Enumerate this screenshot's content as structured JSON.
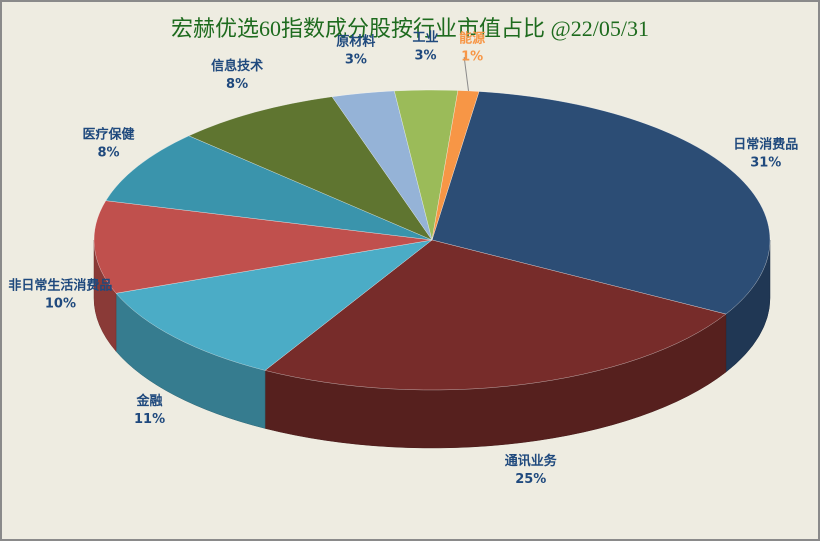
{
  "chart_data": {
    "type": "pie",
    "title": "宏赫优选60指数成分股按行业市值占比 @22/05/31",
    "categories": [
      "日常消费品",
      "通讯业务",
      "金融",
      "非日常生活消费品",
      "医疗保健",
      "信息技术",
      "原材料",
      "工业",
      "能源"
    ],
    "values": [
      31,
      25,
      11,
      10,
      8,
      8,
      3,
      3,
      1
    ],
    "value_labels": [
      "31%",
      "25%",
      "11%",
      "10%",
      "8%",
      "8%",
      "3%",
      "3%",
      "1%"
    ],
    "colors": [
      "#2c4d75",
      "#772c2a",
      "#4bacc6",
      "#c0504d",
      "#3a94ac",
      "#5f7530",
      "#95b3d7",
      "#9bbb59",
      "#f79646"
    ],
    "label_colors": [
      "#1f497d",
      "#1f497d",
      "#1f497d",
      "#1f497d",
      "#1f497d",
      "#1f497d",
      "#1f497d",
      "#1f497d",
      "#f79646"
    ]
  }
}
